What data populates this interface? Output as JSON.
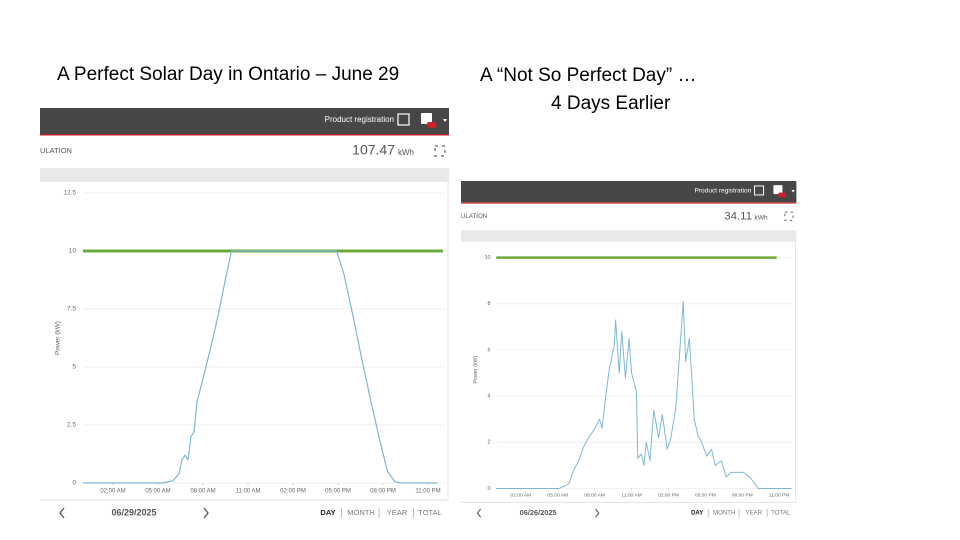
{
  "chart_data": [
    {
      "type": "line",
      "title": [
        "A Perfect Solar Day in Ontario – June 29"
      ],
      "header_link": "Product registration",
      "section_label": "ULATION",
      "total": 107.47,
      "total_unit": "kWh",
      "y_label": "Power (kW)",
      "xlim": [
        0,
        24
      ],
      "xticks": [
        {
          "value": 2,
          "label": "02:00 AM"
        },
        {
          "value": 5,
          "label": "05:00 AM"
        },
        {
          "value": 8,
          "label": "08:00 AM"
        },
        {
          "value": 11,
          "label": "11:00 AM"
        },
        {
          "value": 14,
          "label": "02:00 PM"
        },
        {
          "value": 17,
          "label": "05:00 PM"
        },
        {
          "value": 20,
          "label": "08:00 PM"
        },
        {
          "value": 23,
          "label": "11:00 PM"
        }
      ],
      "ylim": [
        0,
        12.5
      ],
      "yticks": [
        0,
        2.5,
        5,
        7.5,
        10,
        12.5
      ],
      "grid": true,
      "series": [
        {
          "color": "#6aaa3a",
          "x": [
            0,
            24
          ],
          "values": [
            10,
            10
          ]
        },
        {
          "color": "#7db7d3",
          "x": [
            0,
            5.3,
            6,
            6.4,
            6.6,
            6.8,
            7.0,
            7.2,
            7.4,
            7.6,
            8.0,
            8.5,
            9.0,
            9.5,
            9.9,
            16.9,
            17.4,
            18.0,
            18.6,
            19.2,
            19.8,
            20.3,
            20.8,
            21.2,
            23.6
          ],
          "values": [
            0,
            0,
            0.1,
            0.4,
            1.0,
            1.2,
            1.0,
            2.0,
            2.2,
            3.5,
            4.5,
            5.8,
            7.2,
            8.8,
            10,
            10,
            9,
            7.2,
            5.3,
            3.5,
            1.8,
            0.5,
            0.05,
            0,
            0
          ]
        }
      ],
      "date": "06/29/2025",
      "periods": [
        "DAY",
        "MONTH",
        "YEAR",
        "TOTAL"
      ]
    },
    {
      "type": "line",
      "title": [
        "A “Not So Perfect Day” …",
        "4 Days Earlier"
      ],
      "header_link": "Product registration",
      "section_label": "ULATION",
      "total": 34.11,
      "total_unit": "kWh",
      "y_label": "Power (kW)",
      "xlim": [
        0,
        24
      ],
      "xticks": [
        {
          "value": 2,
          "label": "02:00 AM"
        },
        {
          "value": 5,
          "label": "05:00 AM"
        },
        {
          "value": 8,
          "label": "08:00 AM"
        },
        {
          "value": 11,
          "label": "11:00 AM"
        },
        {
          "value": 14,
          "label": "02:00 PM"
        },
        {
          "value": 17,
          "label": "05:00 PM"
        },
        {
          "value": 20,
          "label": "08:00 PM"
        },
        {
          "value": 23,
          "label": "11:00 PM"
        }
      ],
      "ylim": [
        0,
        10.3
      ],
      "yticks": [
        0,
        2,
        4,
        6,
        8,
        10
      ],
      "grid": true,
      "series": [
        {
          "color": "#6aaa3a",
          "x": [
            0,
            22.8
          ],
          "values": [
            10,
            10
          ]
        },
        {
          "color": "#7db7d3",
          "x": [
            0,
            5.1,
            5.9,
            6.3,
            6.7,
            7.1,
            7.5,
            7.9,
            8.4,
            8.6,
            8.9,
            9.2,
            9.6,
            9.7,
            10.0,
            10.2,
            10.5,
            10.8,
            11.0,
            11.4,
            11.5,
            11.8,
            12.0,
            12.2,
            12.5,
            12.8,
            13.2,
            13.5,
            13.9,
            14.2,
            14.6,
            14.9,
            15.2,
            15.4,
            15.7,
            16.1,
            16.4,
            16.7,
            17.1,
            17.5,
            17.8,
            18.3,
            18.7,
            19.1,
            19.5,
            20.1,
            20.6,
            20.9,
            21.3,
            24
          ],
          "values": [
            0,
            0,
            0.2,
            0.8,
            1.2,
            1.8,
            2.2,
            2.5,
            3.0,
            2.6,
            4.0,
            5.2,
            6.2,
            7.3,
            5.0,
            6.8,
            4.8,
            6.5,
            5.0,
            4.2,
            1.3,
            1.5,
            1.0,
            2.0,
            1.2,
            3.4,
            2.2,
            3.2,
            1.7,
            2.2,
            3.5,
            5.8,
            8.1,
            5.5,
            6.5,
            3.0,
            2.3,
            2.0,
            1.4,
            1.7,
            1.0,
            1.2,
            0.5,
            0.7,
            0.7,
            0.7,
            0.5,
            0.3,
            0,
            0
          ]
        }
      ],
      "date": "06/26/2025",
      "periods": [
        "DAY",
        "MONTH",
        "YEAR",
        "TOTAL"
      ]
    }
  ]
}
